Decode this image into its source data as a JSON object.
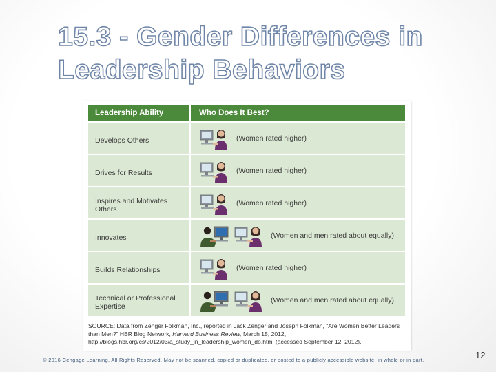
{
  "slide": {
    "title_line1": "15.3 - Gender Differences in",
    "title_line2": "Leadership Behaviors",
    "copyright": "© 2016 Cengage Learning. All Rights Reserved. May not be scanned, copied or duplicated, or posted to a publicly accessible website, in whole or in part.",
    "page_number": "12"
  },
  "table": {
    "header": {
      "col1": "Leadership Ability",
      "col2": "Who Does It Best?"
    },
    "rows": [
      {
        "ability": "Develops Others",
        "result": "(Women rated higher)",
        "icons": [
          "woman-at-computer-icon"
        ]
      },
      {
        "ability": "Drives for Results",
        "result": "(Women rated higher)",
        "icons": [
          "woman-at-computer-icon"
        ]
      },
      {
        "ability": "Inspires and Motivates Others",
        "result": "(Women rated higher)",
        "icons": [
          "woman-at-computer-icon"
        ]
      },
      {
        "ability": "Innovates",
        "result": "(Women and men rated about equally)",
        "icons": [
          "man-at-computer-icon",
          "woman-at-computer-icon"
        ]
      },
      {
        "ability": "Builds Relationships",
        "result": "(Women rated higher)",
        "icons": [
          "woman-at-computer-icon"
        ]
      },
      {
        "ability": "Technical or Professional Expertise",
        "result": "(Women and men rated about equally)",
        "icons": [
          "man-at-computer-icon",
          "woman-at-computer-icon"
        ]
      }
    ],
    "source_part1": "SOURCE: Data from Zenger Folkman, Inc., reported in Jack Zenger and Joseph Folkman, “Are Women Better Leaders than Men?” HBR Blog Network, ",
    "source_journal": "Harvard Business Review,",
    "source_part2": " March 15, 2012, http://blogs.hbr.org/cs/2012/03/a_study_in_leadership_women_do.html (accessed September 12, 2012)."
  },
  "colors": {
    "header_green": "#4a8a3a",
    "row_green": "#dbe8d3",
    "title_outline": "#6f86a8"
  }
}
